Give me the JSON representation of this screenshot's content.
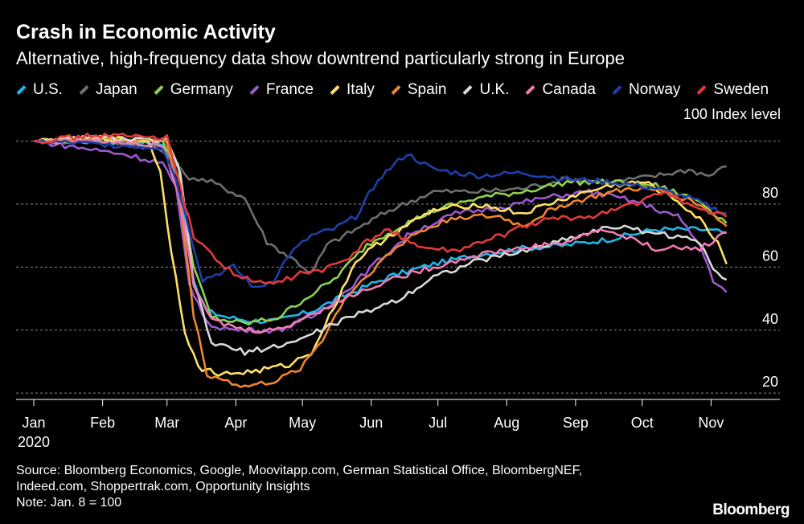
{
  "chart_data": {
    "type": "line",
    "title": "Crash in Economic Activity",
    "subtitle": "Alternative, high-frequency data show downtrend particularly strong in Europe",
    "ylabel": "100 Index level",
    "ylim": [
      18,
      104
    ],
    "yticks": [
      20,
      40,
      60,
      80
    ],
    "ytick_top_label": "100 Index level",
    "xlim": [
      0,
      315
    ],
    "xticks": [
      {
        "label": "Jan",
        "day": 0
      },
      {
        "label": "Feb",
        "day": 31
      },
      {
        "label": "Mar",
        "day": 60
      },
      {
        "label": "Apr",
        "day": 91
      },
      {
        "label": "May",
        "day": 121
      },
      {
        "label": "Jun",
        "day": 152
      },
      {
        "label": "Jul",
        "day": 182
      },
      {
        "label": "Aug",
        "day": 213
      },
      {
        "label": "Sep",
        "day": 244
      },
      {
        "label": "Oct",
        "day": 274
      },
      {
        "label": "Nov",
        "day": 305
      }
    ],
    "x_sublabel": "2020",
    "grid": true,
    "legend_position": "top",
    "series": [
      {
        "name": "U.S.",
        "color": "#1fb7e8",
        "points": [
          [
            0,
            100
          ],
          [
            30,
            100
          ],
          [
            58,
            99
          ],
          [
            66,
            88
          ],
          [
            72,
            55
          ],
          [
            78,
            46
          ],
          [
            88,
            44
          ],
          [
            98,
            43
          ],
          [
            110,
            43
          ],
          [
            125,
            46
          ],
          [
            140,
            51
          ],
          [
            160,
            57
          ],
          [
            180,
            61
          ],
          [
            200,
            64
          ],
          [
            220,
            66
          ],
          [
            240,
            67
          ],
          [
            260,
            69
          ],
          [
            280,
            72
          ],
          [
            300,
            72
          ],
          [
            312,
            71
          ]
        ]
      },
      {
        "name": "Japan",
        "color": "#6f6f6f",
        "points": [
          [
            0,
            100
          ],
          [
            30,
            100
          ],
          [
            55,
            98
          ],
          [
            62,
            95
          ],
          [
            68,
            89
          ],
          [
            80,
            87
          ],
          [
            95,
            82
          ],
          [
            105,
            68
          ],
          [
            118,
            62
          ],
          [
            125,
            58
          ],
          [
            132,
            67
          ],
          [
            145,
            72
          ],
          [
            160,
            78
          ],
          [
            180,
            84
          ],
          [
            200,
            84
          ],
          [
            220,
            85
          ],
          [
            240,
            88
          ],
          [
            260,
            87
          ],
          [
            280,
            89
          ],
          [
            295,
            91
          ],
          [
            304,
            89
          ],
          [
            312,
            92
          ]
        ]
      },
      {
        "name": "Germany",
        "color": "#8fd14f",
        "points": [
          [
            0,
            100
          ],
          [
            30,
            101
          ],
          [
            58,
            100
          ],
          [
            65,
            92
          ],
          [
            72,
            60
          ],
          [
            80,
            44
          ],
          [
            95,
            42
          ],
          [
            110,
            44
          ],
          [
            120,
            49
          ],
          [
            135,
            56
          ],
          [
            150,
            67
          ],
          [
            165,
            73
          ],
          [
            180,
            78
          ],
          [
            200,
            82
          ],
          [
            220,
            84
          ],
          [
            240,
            87
          ],
          [
            260,
            87
          ],
          [
            280,
            86
          ],
          [
            300,
            81
          ],
          [
            312,
            74
          ]
        ]
      },
      {
        "name": "France",
        "color": "#9b59d0",
        "points": [
          [
            0,
            100
          ],
          [
            20,
            98
          ],
          [
            40,
            96
          ],
          [
            58,
            93
          ],
          [
            64,
            85
          ],
          [
            70,
            55
          ],
          [
            78,
            42
          ],
          [
            90,
            40
          ],
          [
            110,
            40
          ],
          [
            125,
            44
          ],
          [
            140,
            52
          ],
          [
            155,
            62
          ],
          [
            170,
            71
          ],
          [
            190,
            77
          ],
          [
            210,
            79
          ],
          [
            230,
            82
          ],
          [
            250,
            84
          ],
          [
            270,
            81
          ],
          [
            290,
            76
          ],
          [
            300,
            67
          ],
          [
            306,
            56
          ],
          [
            312,
            52
          ]
        ]
      },
      {
        "name": "Italy",
        "color": "#ffe066",
        "points": [
          [
            0,
            100
          ],
          [
            30,
            101
          ],
          [
            52,
            100
          ],
          [
            57,
            90
          ],
          [
            62,
            65
          ],
          [
            68,
            40
          ],
          [
            74,
            28
          ],
          [
            85,
            26
          ],
          [
            100,
            27
          ],
          [
            115,
            29
          ],
          [
            125,
            33
          ],
          [
            135,
            47
          ],
          [
            145,
            62
          ],
          [
            160,
            70
          ],
          [
            180,
            78
          ],
          [
            200,
            80
          ],
          [
            220,
            77
          ],
          [
            240,
            82
          ],
          [
            260,
            86
          ],
          [
            275,
            87
          ],
          [
            290,
            81
          ],
          [
            300,
            75
          ],
          [
            308,
            68
          ],
          [
            312,
            61
          ]
        ]
      },
      {
        "name": "Spain",
        "color": "#f0852d",
        "points": [
          [
            0,
            100
          ],
          [
            30,
            101
          ],
          [
            60,
            100
          ],
          [
            66,
            80
          ],
          [
            72,
            45
          ],
          [
            78,
            26
          ],
          [
            95,
            22
          ],
          [
            110,
            24
          ],
          [
            120,
            28
          ],
          [
            130,
            37
          ],
          [
            140,
            50
          ],
          [
            155,
            61
          ],
          [
            170,
            70
          ],
          [
            190,
            76
          ],
          [
            210,
            76
          ],
          [
            220,
            73
          ],
          [
            235,
            79
          ],
          [
            255,
            83
          ],
          [
            270,
            85
          ],
          [
            285,
            84
          ],
          [
            300,
            80
          ],
          [
            312,
            73
          ]
        ]
      },
      {
        "name": "U.K.",
        "color": "#d9d9d9",
        "points": [
          [
            0,
            100
          ],
          [
            30,
            101
          ],
          [
            60,
            100
          ],
          [
            66,
            90
          ],
          [
            72,
            55
          ],
          [
            80,
            36
          ],
          [
            95,
            33
          ],
          [
            110,
            35
          ],
          [
            120,
            37
          ],
          [
            135,
            42
          ],
          [
            150,
            46
          ],
          [
            165,
            50
          ],
          [
            180,
            57
          ],
          [
            200,
            62
          ],
          [
            220,
            65
          ],
          [
            240,
            69
          ],
          [
            260,
            73
          ],
          [
            280,
            71
          ],
          [
            300,
            68
          ],
          [
            306,
            60
          ],
          [
            312,
            56
          ]
        ]
      },
      {
        "name": "Canada",
        "color": "#f07bb2",
        "points": [
          [
            0,
            100
          ],
          [
            30,
            100
          ],
          [
            58,
            99
          ],
          [
            66,
            82
          ],
          [
            72,
            55
          ],
          [
            80,
            43
          ],
          [
            95,
            40
          ],
          [
            110,
            40
          ],
          [
            125,
            45
          ],
          [
            140,
            50
          ],
          [
            160,
            56
          ],
          [
            180,
            60
          ],
          [
            200,
            64
          ],
          [
            220,
            66
          ],
          [
            240,
            68
          ],
          [
            255,
            72
          ],
          [
            265,
            70
          ],
          [
            280,
            66
          ],
          [
            300,
            66
          ],
          [
            312,
            71
          ]
        ]
      },
      {
        "name": "Norway",
        "color": "#1e3fa8",
        "points": [
          [
            0,
            100
          ],
          [
            30,
            99
          ],
          [
            58,
            98
          ],
          [
            64,
            88
          ],
          [
            70,
            72
          ],
          [
            76,
            56
          ],
          [
            90,
            60
          ],
          [
            100,
            53
          ],
          [
            108,
            56
          ],
          [
            115,
            64
          ],
          [
            125,
            70
          ],
          [
            135,
            72
          ],
          [
            145,
            76
          ],
          [
            155,
            88
          ],
          [
            168,
            96
          ],
          [
            180,
            91
          ],
          [
            200,
            89
          ],
          [
            220,
            90
          ],
          [
            240,
            88
          ],
          [
            260,
            87
          ],
          [
            280,
            85
          ],
          [
            295,
            82
          ],
          [
            305,
            79
          ],
          [
            312,
            77
          ]
        ]
      },
      {
        "name": "Sweden",
        "color": "#e23b3b",
        "points": [
          [
            0,
            100
          ],
          [
            30,
            102
          ],
          [
            60,
            101
          ],
          [
            66,
            85
          ],
          [
            72,
            70
          ],
          [
            80,
            64
          ],
          [
            90,
            58
          ],
          [
            100,
            55
          ],
          [
            110,
            55
          ],
          [
            120,
            58
          ],
          [
            130,
            59
          ],
          [
            140,
            62
          ],
          [
            150,
            68
          ],
          [
            160,
            72
          ],
          [
            175,
            66
          ],
          [
            190,
            65
          ],
          [
            210,
            70
          ],
          [
            230,
            75
          ],
          [
            250,
            76
          ],
          [
            270,
            80
          ],
          [
            285,
            84
          ],
          [
            300,
            78
          ],
          [
            312,
            76
          ]
        ]
      }
    ]
  },
  "footer": {
    "source_line1": "Source: Bloomberg Economics, Google, Moovitapp.com, German Statistical Office, BloombergNEF,",
    "source_line2": "Indeed.com, Shoppertrak.com, Opportunity Insights",
    "note": "Note: Jan. 8 = 100",
    "brand": "Bloomberg"
  }
}
